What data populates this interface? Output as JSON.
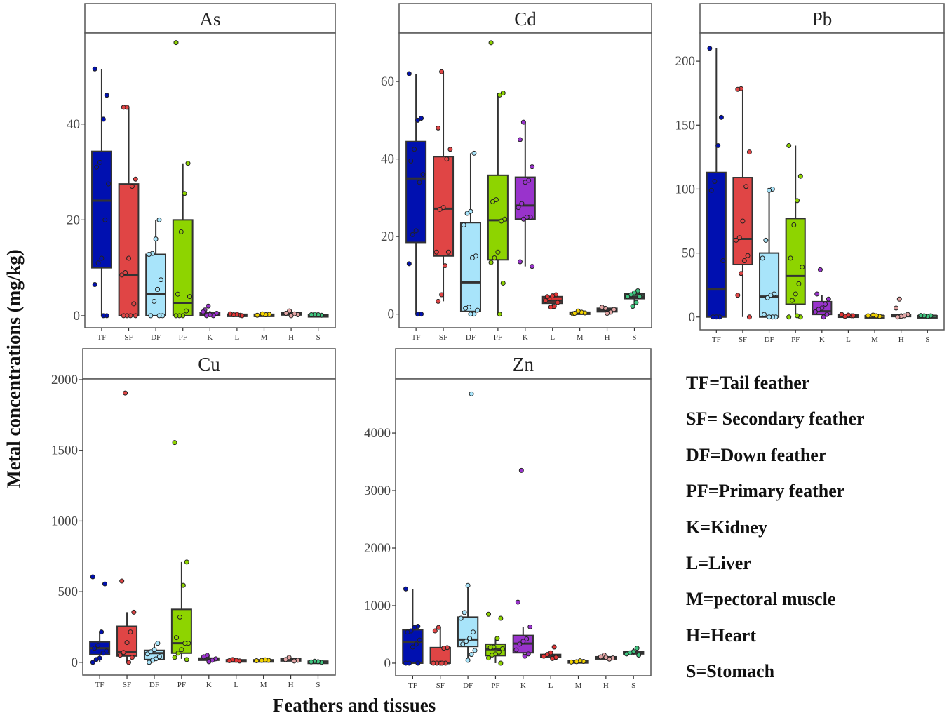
{
  "chart_data": {
    "type": "box",
    "xlabel": "Feathers and tissues",
    "ylabel": "Metal concentrations (mg/kg)",
    "categories": [
      "TF",
      "SF",
      "DF",
      "PF",
      "K",
      "L",
      "M",
      "H",
      "S"
    ],
    "colors": [
      "#0010b0",
      "#e04545",
      "#a8e4fa",
      "#8ed400",
      "#9933cc",
      "#e03535",
      "#f2d200",
      "#e3a5a5",
      "#3fc47f"
    ],
    "legend": [
      "TF=Tail feather",
      "SF= Secondary feather",
      "DF=Down feather",
      "PF=Primary feather",
      "K=Kidney",
      "L=Liver",
      "M=pectoral muscle",
      "H=Heart",
      "S=Stomach"
    ],
    "panels": [
      {
        "title": "As",
        "ylim": [
          -2.5,
          59
        ],
        "ticks": [
          0,
          20,
          40
        ],
        "boxes": [
          {
            "min": 0,
            "q1": 10,
            "median": 24,
            "q3": 34.3,
            "max": 51.5,
            "points": [
              51.5,
              46,
              41,
              32,
              31,
              27.5,
              20,
              12,
              11,
              6.5,
              0,
              0
            ]
          },
          {
            "min": 0,
            "q1": 0,
            "median": 8.5,
            "q3": 27.5,
            "max": 43.5,
            "points": [
              43.5,
              43.5,
              28.5,
              27,
              12,
              9,
              8.5,
              2.5,
              0,
              0,
              0,
              0
            ]
          },
          {
            "min": 0,
            "q1": 0,
            "median": 4.5,
            "q3": 12.8,
            "max": 20,
            "points": [
              20,
              16,
              13,
              12.8,
              7.5,
              5.5,
              3,
              0,
              0,
              0
            ]
          },
          {
            "min": 0,
            "q1": 0,
            "median": 2.7,
            "q3": 20,
            "max": 31.8,
            "points": [
              57,
              31.8,
              25.5,
              17.5,
              4.5,
              4,
              1,
              0,
              0,
              0
            ]
          },
          {
            "min": 0,
            "q1": 0,
            "median": 0.3,
            "q3": 0.7,
            "max": 1,
            "points": [
              2,
              1.2,
              0.5,
              0,
              0.2,
              0,
              0.8
            ]
          },
          {
            "min": 0,
            "q1": 0.1,
            "median": 0.2,
            "q3": 0.3,
            "max": 0.4,
            "points": [
              0.1,
              0.3,
              0.2,
              0.4,
              0
            ]
          },
          {
            "min": 0,
            "q1": 0.1,
            "median": 0.2,
            "q3": 0.3,
            "max": 0.4,
            "points": [
              0.1,
              0.3,
              0.2,
              0.4
            ]
          },
          {
            "min": 0,
            "q1": 0.2,
            "median": 0.4,
            "q3": 0.6,
            "max": 1,
            "points": [
              1,
              0.5,
              0.2,
              0.4,
              0
            ]
          },
          {
            "min": 0,
            "q1": 0.1,
            "median": 0.2,
            "q3": 0.2,
            "max": 0.3,
            "points": [
              0.1,
              0.2,
              0.3,
              0.2
            ]
          }
        ]
      },
      {
        "title": "Cd",
        "ylim": [
          -3.5,
          72.5
        ],
        "ticks": [
          0,
          20,
          40,
          60
        ],
        "boxes": [
          {
            "min": 0,
            "q1": 18.5,
            "median": 35,
            "q3": 44.5,
            "max": 62,
            "points": [
              62,
              50.5,
              50,
              42.5,
              39.5,
              36,
              34,
              21.5,
              20.5,
              13,
              0,
              0
            ]
          },
          {
            "min": 3.3,
            "q1": 15,
            "median": 27.2,
            "q3": 40.6,
            "max": 62.5,
            "points": [
              62.5,
              48,
              42.5,
              40,
              27.5,
              27,
              16,
              16,
              12.5,
              5,
              3.3
            ]
          },
          {
            "min": 0,
            "q1": 0.7,
            "median": 8.2,
            "q3": 23.6,
            "max": 41.5,
            "points": [
              41.5,
              26.5,
              26,
              23,
              15,
              14.5,
              1.8,
              1.5,
              1,
              0,
              0
            ]
          },
          {
            "min": 0,
            "q1": 14,
            "median": 24.2,
            "q3": 35.8,
            "max": 57,
            "points": [
              70,
              57,
              56.5,
              29.5,
              29,
              24.5,
              24,
              16,
              14.5,
              13.3,
              8,
              0
            ]
          },
          {
            "min": 12.3,
            "q1": 24.5,
            "median": 28,
            "q3": 35.3,
            "max": 49.5,
            "points": [
              49.5,
              45,
              38,
              34.5,
              34,
              28.5,
              27.5,
              25,
              25,
              24.5,
              13.5,
              12.3
            ]
          },
          {
            "min": 1.8,
            "q1": 2.8,
            "median": 3.5,
            "q3": 4.5,
            "max": 5,
            "points": [
              5,
              4.7,
              4,
              3.5,
              3,
              2,
              1.8,
              4.5
            ]
          },
          {
            "min": 0,
            "q1": 0.1,
            "median": 0.3,
            "q3": 0.5,
            "max": 0.8,
            "points": [
              0.1,
              0.3,
              0.5,
              0.8,
              0.2
            ]
          },
          {
            "min": 0.2,
            "q1": 0.6,
            "median": 1,
            "q3": 1.5,
            "max": 1.8,
            "points": [
              1.5,
              1.8,
              1.2,
              0.5,
              0.2
            ]
          },
          {
            "min": 2,
            "q1": 4,
            "median": 4.5,
            "q3": 5.2,
            "max": 6,
            "points": [
              6,
              5.5,
              5,
              4.5,
              4.5,
              3,
              2
            ]
          }
        ]
      },
      {
        "title": "Pb",
        "ylim": [
          -10,
          222
        ],
        "ticks": [
          0,
          50,
          100,
          150,
          200
        ],
        "boxes": [
          {
            "min": 0,
            "q1": 0,
            "median": 22,
            "q3": 113,
            "max": 210,
            "points": [
              210,
              156,
              134,
              106,
              99,
              44,
              0,
              0,
              0
            ]
          },
          {
            "min": 0,
            "q1": 41,
            "median": 61,
            "q3": 109,
            "max": 178,
            "points": [
              178.5,
              178,
              129,
              102,
              75,
              62,
              60,
              48,
              44,
              34,
              17,
              0
            ]
          },
          {
            "min": 0,
            "q1": 0,
            "median": 16,
            "q3": 50,
            "max": 100,
            "points": [
              100,
              99,
              60,
              46,
              18,
              17,
              15,
              2,
              0,
              0,
              0
            ]
          },
          {
            "min": 0,
            "q1": 10,
            "median": 32,
            "q3": 77,
            "max": 134,
            "points": [
              134,
              110,
              91,
              72,
              46,
              39,
              26,
              18,
              13,
              0,
              0,
              1
            ]
          },
          {
            "min": 1.5,
            "q1": 2,
            "median": 4.5,
            "q3": 12,
            "max": 17,
            "points": [
              37,
              18,
              14,
              10,
              7,
              6,
              4,
              2,
              0
            ]
          },
          {
            "min": 0,
            "q1": 0.5,
            "median": 1,
            "q3": 1.5,
            "max": 2,
            "points": [
              1,
              1.5,
              0.5,
              2,
              1
            ]
          },
          {
            "min": 0,
            "q1": 0.5,
            "median": 1,
            "q3": 1,
            "max": 1.5,
            "points": [
              1,
              0.5,
              1,
              1.5
            ]
          },
          {
            "min": 0,
            "q1": 0.5,
            "median": 1,
            "q3": 2,
            "max": 3,
            "points": [
              14,
              7,
              2,
              1,
              0.5,
              0
            ]
          },
          {
            "min": 0,
            "q1": 0.5,
            "median": 1,
            "q3": 1,
            "max": 1.5,
            "points": [
              1,
              0.5,
              1,
              1.2
            ]
          }
        ]
      },
      {
        "title": "Cu",
        "ylim": [
          -90,
          2005
        ],
        "ticks": [
          0,
          500,
          1000,
          1500,
          2000
        ],
        "boxes": [
          {
            "min": 0,
            "q1": 55,
            "median": 100,
            "q3": 145,
            "max": 215,
            "points": [
              605,
              555,
              215,
              120,
              100,
              80,
              65,
              30,
              20,
              0
            ]
          },
          {
            "min": 0,
            "q1": 45,
            "median": 75,
            "q3": 255,
            "max": 355,
            "points": [
              1905,
              575,
              355,
              215,
              140,
              70,
              50,
              35,
              0
            ]
          },
          {
            "min": 10,
            "q1": 20,
            "median": 65,
            "q3": 85,
            "max": 135,
            "points": [
              135,
              90,
              75,
              60,
              40,
              25,
              15,
              0
            ]
          },
          {
            "min": 25,
            "q1": 65,
            "median": 135,
            "q3": 375,
            "max": 710,
            "points": [
              1555,
              710,
              545,
              320,
              175,
              135,
              135,
              90,
              65,
              35,
              20
            ]
          },
          {
            "min": 5,
            "q1": 15,
            "median": 25,
            "q3": 30,
            "max": 50,
            "points": [
              50,
              40,
              25,
              15,
              5
            ]
          },
          {
            "min": 10,
            "q1": 12,
            "median": 15,
            "q3": 18,
            "max": 22,
            "points": [
              10,
              15,
              20,
              12
            ]
          },
          {
            "min": 10,
            "q1": 12,
            "median": 15,
            "q3": 18,
            "max": 22,
            "points": [
              12,
              15,
              18,
              14
            ]
          },
          {
            "min": 10,
            "q1": 15,
            "median": 20,
            "q3": 25,
            "max": 35,
            "points": [
              35,
              20,
              15,
              10
            ]
          },
          {
            "min": 0,
            "q1": 3,
            "median": 5,
            "q3": 8,
            "max": 10,
            "points": [
              0,
              5,
              8,
              3
            ]
          }
        ]
      },
      {
        "title": "Zn",
        "ylim": [
          -220,
          4940
        ],
        "ticks": [
          0,
          1000,
          2000,
          3000,
          4000
        ],
        "boxes": [
          {
            "min": 0,
            "q1": 0,
            "median": 370,
            "q3": 580,
            "max": 1290,
            "points": [
              1290,
              640,
              620,
              560,
              540,
              400,
              330,
              280,
              0,
              0,
              0
            ]
          },
          {
            "min": 0,
            "q1": 0,
            "median": 0,
            "q3": 270,
            "max": 620,
            "points": [
              620,
              560,
              270,
              260,
              0,
              0,
              0,
              0,
              0
            ]
          },
          {
            "min": 50,
            "q1": 290,
            "median": 410,
            "q3": 800,
            "max": 1350,
            "points": [
              4680,
              1350,
              880,
              780,
              540,
              430,
              380,
              330,
              220,
              150,
              50
            ]
          },
          {
            "min": 0,
            "q1": 130,
            "median": 240,
            "q3": 330,
            "max": 430,
            "points": [
              850,
              780,
              430,
              280,
              270,
              250,
              190,
              160,
              140,
              90,
              0
            ]
          },
          {
            "min": 110,
            "q1": 180,
            "median": 340,
            "q3": 480,
            "max": 630,
            "points": [
              3350,
              1060,
              630,
              420,
              380,
              330,
              230,
              160,
              120
            ]
          },
          {
            "min": 80,
            "q1": 100,
            "median": 130,
            "q3": 150,
            "max": 180,
            "points": [
              280,
              180,
              150,
              120,
              100,
              80
            ]
          },
          {
            "min": 10,
            "q1": 20,
            "median": 30,
            "q3": 40,
            "max": 50,
            "points": [
              20,
              30,
              40,
              25
            ]
          },
          {
            "min": 60,
            "q1": 80,
            "median": 100,
            "q3": 110,
            "max": 140,
            "points": [
              140,
              110,
              90,
              70,
              100
            ]
          },
          {
            "min": 140,
            "q1": 160,
            "median": 180,
            "q3": 200,
            "max": 260,
            "points": [
              260,
              200,
              180,
              160,
              140
            ]
          }
        ]
      }
    ]
  }
}
